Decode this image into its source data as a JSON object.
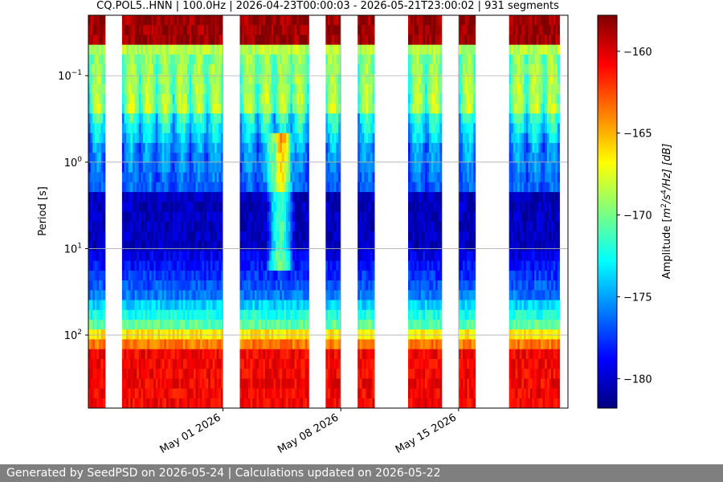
{
  "chart_data": {
    "type": "heatmap",
    "title": "CQ.POL5..HNN | 100.0Hz | 2026-04-23T00:00:03 - 2026-05-21T23:00:02 | 931 segments",
    "xlabel": "",
    "ylabel": "Period [s]",
    "x_range": [
      "2026-04-23",
      "2026-05-21"
    ],
    "y_scale": "log",
    "y_range": [
      0.02,
      700
    ],
    "y_inverted": true,
    "y_ticks": [
      {
        "value": 0.1,
        "base": "10",
        "exp": "−1"
      },
      {
        "value": 1,
        "base": "10",
        "exp": "0"
      },
      {
        "value": 10,
        "base": "10",
        "exp": "1"
      },
      {
        "value": 100,
        "base": "10",
        "exp": "2"
      }
    ],
    "x_ticks": [
      {
        "date": "2026-05-01",
        "label": "May 01 2026"
      },
      {
        "date": "2026-05-08",
        "label": "May 08 2026"
      },
      {
        "date": "2026-05-15",
        "label": "May 15 2026"
      }
    ],
    "grid": true,
    "colormap": "jet",
    "colorbar": {
      "label_prefix": "Amplitude [",
      "label_math": "m",
      "label_sup1": "2",
      "label_mid": "/s",
      "label_sup2": "4",
      "label_end": "/Hz] [dB]",
      "range": [
        -181.8,
        -157.8
      ],
      "ticks": [
        -160,
        -165,
        -170,
        -175,
        -180
      ],
      "tick_labels": [
        "−160",
        "−165",
        "−170",
        "−175",
        "−180"
      ]
    },
    "data_segments": [
      [
        "2026-04-23",
        "2026-04-24"
      ],
      [
        "2026-04-25",
        "2026-05-01"
      ],
      [
        "2026-05-02",
        "2026-05-06.1"
      ],
      [
        "2026-05-07.1",
        "2026-05-08"
      ],
      [
        "2026-05-09",
        "2026-05-10"
      ],
      [
        "2026-05-12",
        "2026-05-14"
      ],
      [
        "2026-05-15",
        "2026-05-16"
      ],
      [
        "2026-05-18",
        "2026-05-21"
      ]
    ]
  },
  "footer": {
    "text": "Generated by SeedPSD on 2026-05-24 | Calculations updated on 2026-05-22"
  }
}
